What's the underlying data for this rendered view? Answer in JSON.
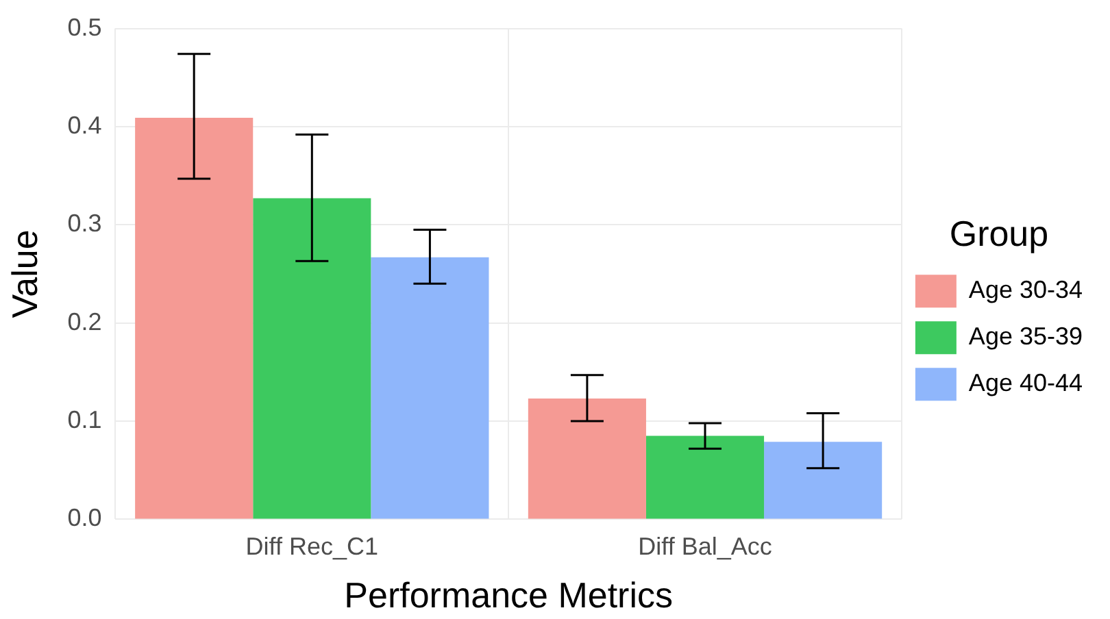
{
  "chart_data": {
    "type": "bar",
    "xlabel": "Performance Metrics",
    "ylabel": "Value",
    "legend_title": "Group",
    "categories": [
      "Diff Rec_C1",
      "Diff Bal_Acc"
    ],
    "series": [
      {
        "name": "Age 30-34",
        "color": "#f59a94",
        "values": [
          0.409,
          0.123
        ],
        "errors": [
          [
            0.347,
            0.474
          ],
          [
            0.1,
            0.147
          ]
        ]
      },
      {
        "name": "Age 35-39",
        "color": "#3dc95f",
        "values": [
          0.327,
          0.085
        ],
        "errors": [
          [
            0.263,
            0.392
          ],
          [
            0.072,
            0.098
          ]
        ]
      },
      {
        "name": "Age 40-44",
        "color": "#8fb6fb",
        "values": [
          0.267,
          0.079
        ],
        "errors": [
          [
            0.24,
            0.295
          ],
          [
            0.052,
            0.108
          ]
        ]
      }
    ],
    "ylim": [
      0,
      0.5
    ],
    "yticks": [
      {
        "value": 0,
        "label": "0.0"
      },
      {
        "value": 0.1,
        "label": "0.1"
      },
      {
        "value": 0.2,
        "label": "0.2"
      },
      {
        "value": 0.3,
        "label": "0.3"
      },
      {
        "value": 0.4,
        "label": "0.4"
      },
      {
        "value": 0.5,
        "label": "0.5"
      }
    ],
    "grid": true,
    "legend": "right"
  }
}
